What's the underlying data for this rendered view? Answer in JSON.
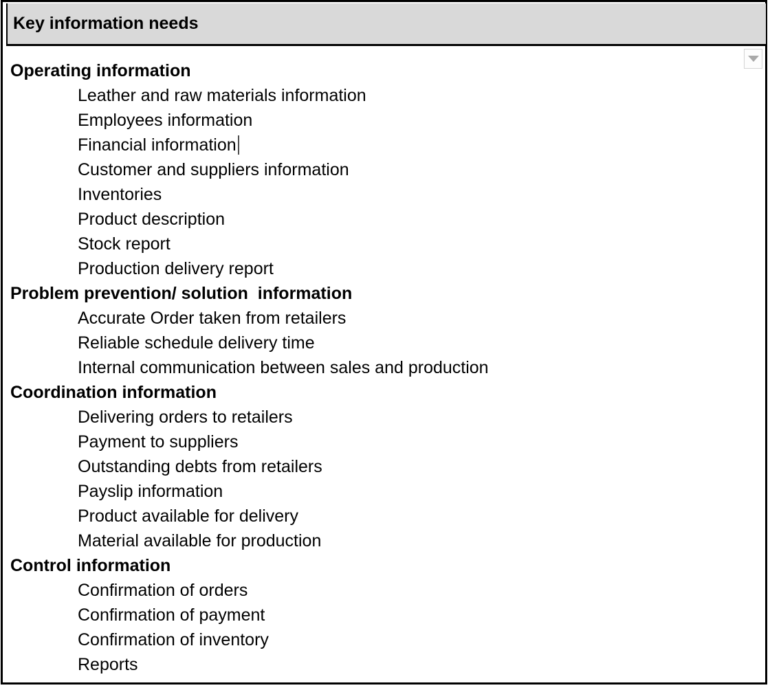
{
  "table": {
    "header": {
      "label": "Key information needs",
      "background": "#d9d9d9"
    },
    "sections": [
      {
        "title": "Operating information",
        "items": [
          "Leather and raw materials information",
          "Employees information",
          "Financial information",
          "Customer and suppliers information",
          "Inventories",
          "Product description",
          "Stock report",
          "Production delivery report"
        ]
      },
      {
        "title": "Problem prevention/ solution  information",
        "items": [
          "Accurate Order taken from retailers",
          "Reliable schedule delivery time",
          "Internal communication between sales and production"
        ]
      },
      {
        "title": "Coordination information",
        "items": [
          "Delivering orders to retailers",
          "Payment to suppliers",
          "Outstanding debts from retailers",
          "Payslip information",
          "Product available for delivery",
          "Material available for production"
        ]
      },
      {
        "title": "Control information",
        "items": [
          "Confirmation of orders",
          "Confirmation of payment",
          "Confirmation of inventory",
          "Reports"
        ]
      }
    ]
  },
  "text_cursor": {
    "section_index": 0,
    "item_index": 2
  },
  "dropdown_button": {
    "icon": "chevron-down-icon"
  },
  "colors": {
    "border": "#000000",
    "header_fill": "#d9d9d9",
    "text": "#000000",
    "caret": "#4d4d4d",
    "dropdown_bg": "#fdfdfd",
    "dropdown_border": "#d4d4d4",
    "dropdown_arrow": "#a9a9a9"
  }
}
